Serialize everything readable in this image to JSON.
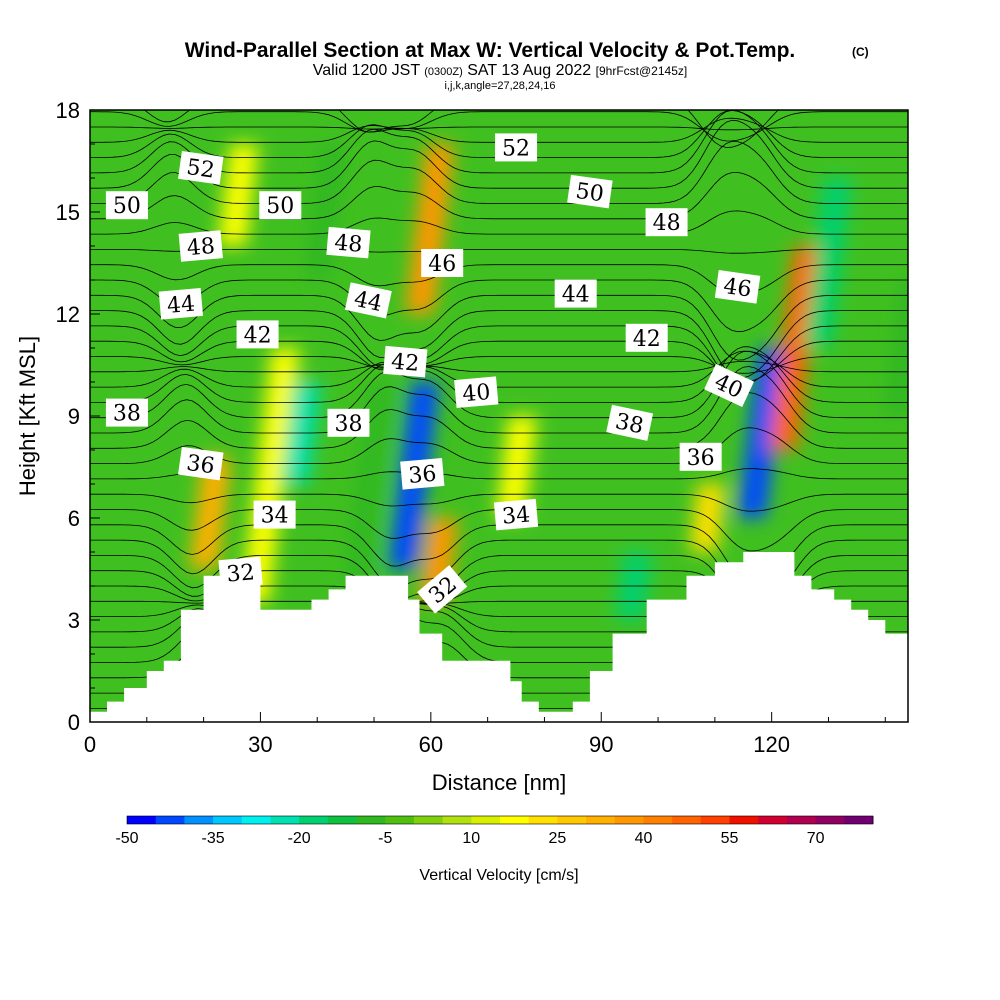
{
  "title": {
    "main": "Wind-Parallel Section at Max W: Vertical Velocity & Pot.Temp.",
    "copyright": "(C)",
    "valid_prefix": "Valid 1200 JST",
    "valid_z": "(0300Z)",
    "valid_date": "SAT 13 Aug 2022",
    "valid_fcst": "[9hrFcst@2145z]",
    "indices": "i,j,k,angle=27,28,24,16"
  },
  "chart_data": {
    "type": "heatmap",
    "xlabel": "Distance [nm]",
    "ylabel": "Height [Kft MSL]",
    "xlim": [
      0,
      144
    ],
    "ylim": [
      0,
      18
    ],
    "x_ticks": [
      0,
      30,
      60,
      90,
      120
    ],
    "y_ticks": [
      0,
      3,
      6,
      9,
      12,
      15,
      18
    ],
    "colorbar": {
      "label": "Vertical Velocity [cm/s]",
      "tick_values": [
        -50,
        -35,
        -20,
        -5,
        10,
        25,
        40,
        55,
        70
      ],
      "tick_labels": [
        "-50",
        "-35",
        "-20",
        "-5",
        "10",
        "25",
        "40",
        "55",
        "70"
      ],
      "levels": [
        -50,
        -45,
        -40,
        -35,
        -30,
        -25,
        -20,
        -15,
        -10,
        -5,
        0,
        5,
        10,
        15,
        20,
        25,
        30,
        35,
        40,
        45,
        50,
        55,
        60,
        65,
        70,
        75,
        80
      ],
      "colors": [
        "#0000ff",
        "#0048ff",
        "#0090ff",
        "#00c8ff",
        "#00f0f0",
        "#00e0b0",
        "#00d070",
        "#10c040",
        "#30b820",
        "#50c010",
        "#80d010",
        "#b0e010",
        "#d8f000",
        "#ffff00",
        "#ffe000",
        "#ffc800",
        "#ffb000",
        "#ff9800",
        "#ff8000",
        "#ff6400",
        "#ff4000",
        "#f01000",
        "#d00030",
        "#b00050",
        "#900060",
        "#700070"
      ]
    },
    "velocity_bands": [
      {
        "x": 20,
        "h0": 4.5,
        "h1": 7.8,
        "w": 30
      },
      {
        "x": 29,
        "h0": 3.5,
        "h1": 11,
        "w": 15
      },
      {
        "x": 36,
        "h0": 7,
        "h1": 10,
        "w": -22
      },
      {
        "x": 47,
        "h0": 4,
        "h1": 10,
        "w": -10
      },
      {
        "x": 55,
        "h0": 4.5,
        "h1": 10,
        "w": -45
      },
      {
        "x": 60.5,
        "h0": 3.5,
        "h1": 6,
        "w": 35
      },
      {
        "x": 58,
        "h0": 12,
        "h1": 17,
        "w": 35
      },
      {
        "x": 74,
        "h0": 6,
        "h1": 9,
        "w": 15
      },
      {
        "x": 95,
        "h0": 3,
        "h1": 5,
        "w": -20
      },
      {
        "x": 108,
        "h0": 5,
        "h1": 7,
        "w": 22
      },
      {
        "x": 116.5,
        "h0": 6,
        "h1": 11,
        "w": -45
      },
      {
        "x": 122,
        "h0": 8,
        "h1": 14,
        "w": 45
      },
      {
        "x": 128,
        "h0": 11,
        "h1": 16,
        "w": -20
      },
      {
        "x": 40,
        "h0": 13,
        "h1": 17,
        "w": -10
      },
      {
        "x": 25,
        "h0": 14,
        "h1": 17,
        "w": 15
      },
      {
        "x": 142,
        "h0": 9,
        "h1": 13,
        "w": -10
      }
    ],
    "terrain": [
      [
        0,
        0.3
      ],
      [
        3,
        0.3
      ],
      [
        3,
        0.6
      ],
      [
        6,
        0.6
      ],
      [
        6,
        1.0
      ],
      [
        10,
        1.0
      ],
      [
        10,
        1.5
      ],
      [
        13,
        1.5
      ],
      [
        13,
        1.8
      ],
      [
        16,
        1.8
      ],
      [
        16,
        3.3
      ],
      [
        20,
        3.3
      ],
      [
        20,
        4.3
      ],
      [
        30,
        4.3
      ],
      [
        30,
        3.3
      ],
      [
        39,
        3.3
      ],
      [
        39,
        3.6
      ],
      [
        42,
        3.6
      ],
      [
        42,
        3.9
      ],
      [
        45,
        3.9
      ],
      [
        45,
        4.3
      ],
      [
        56,
        4.3
      ],
      [
        56,
        3.6
      ],
      [
        58,
        3.6
      ],
      [
        58,
        2.6
      ],
      [
        62,
        2.6
      ],
      [
        62,
        1.8
      ],
      [
        74,
        1.8
      ],
      [
        74,
        1.2
      ],
      [
        76,
        1.2
      ],
      [
        76,
        0.6
      ],
      [
        79,
        0.6
      ],
      [
        79,
        0.3
      ],
      [
        85,
        0.3
      ],
      [
        85,
        0.6
      ],
      [
        88,
        0.6
      ],
      [
        88,
        1.5
      ],
      [
        92,
        1.5
      ],
      [
        92,
        2.6
      ],
      [
        98,
        2.6
      ],
      [
        98,
        3.6
      ],
      [
        105,
        3.6
      ],
      [
        105,
        4.3
      ],
      [
        110,
        4.3
      ],
      [
        110,
        4.7
      ],
      [
        115,
        4.7
      ],
      [
        115,
        5.0
      ],
      [
        124,
        5.0
      ],
      [
        124,
        4.3
      ],
      [
        127,
        4.3
      ],
      [
        127,
        3.9
      ],
      [
        131,
        3.9
      ],
      [
        131,
        3.6
      ],
      [
        134,
        3.6
      ],
      [
        134,
        3.3
      ],
      [
        137,
        3.3
      ],
      [
        137,
        3.0
      ],
      [
        140,
        3.0
      ],
      [
        140,
        2.6
      ],
      [
        144,
        2.6
      ]
    ],
    "theta_contour_labels": [
      {
        "text": "52",
        "x": 19.5,
        "y": 16.3,
        "rot": 8
      },
      {
        "text": "50",
        "x": 6.5,
        "y": 15.2,
        "rot": 0
      },
      {
        "text": "50",
        "x": 33.5,
        "y": 15.2,
        "rot": 0
      },
      {
        "text": "52",
        "x": 75,
        "y": 16.9,
        "rot": 0
      },
      {
        "text": "50",
        "x": 88,
        "y": 15.6,
        "rot": 8
      },
      {
        "text": "48",
        "x": 19.5,
        "y": 14.0,
        "rot": -5
      },
      {
        "text": "48",
        "x": 45.5,
        "y": 14.1,
        "rot": 5
      },
      {
        "text": "46",
        "x": 62,
        "y": 13.5,
        "rot": 0
      },
      {
        "text": "48",
        "x": 101.5,
        "y": 14.7,
        "rot": 0
      },
      {
        "text": "46",
        "x": 114,
        "y": 12.8,
        "rot": 8
      },
      {
        "text": "44",
        "x": 16,
        "y": 12.3,
        "rot": -5
      },
      {
        "text": "44",
        "x": 49,
        "y": 12.4,
        "rot": 12
      },
      {
        "text": "44",
        "x": 85.5,
        "y": 12.6,
        "rot": 0
      },
      {
        "text": "42",
        "x": 29.5,
        "y": 11.4,
        "rot": 0
      },
      {
        "text": "42",
        "x": 55.5,
        "y": 10.6,
        "rot": 5
      },
      {
        "text": "42",
        "x": 98,
        "y": 11.3,
        "rot": 0
      },
      {
        "text": "40",
        "x": 68,
        "y": 9.7,
        "rot": -5
      },
      {
        "text": "40",
        "x": 112.5,
        "y": 9.9,
        "rot": 25
      },
      {
        "text": "38",
        "x": 6.5,
        "y": 9.1,
        "rot": 0
      },
      {
        "text": "38",
        "x": 45.5,
        "y": 8.8,
        "rot": 0
      },
      {
        "text": "38",
        "x": 95,
        "y": 8.8,
        "rot": 12
      },
      {
        "text": "36",
        "x": 19.5,
        "y": 7.6,
        "rot": 8
      },
      {
        "text": "36",
        "x": 58.5,
        "y": 7.3,
        "rot": -5
      },
      {
        "text": "36",
        "x": 107.5,
        "y": 7.8,
        "rot": 0
      },
      {
        "text": "34",
        "x": 32.5,
        "y": 6.1,
        "rot": 0
      },
      {
        "text": "34",
        "x": 75,
        "y": 6.1,
        "rot": -5
      },
      {
        "text": "32",
        "x": 26.5,
        "y": 4.4,
        "rot": -5
      },
      {
        "text": "32",
        "x": 62,
        "y": 3.9,
        "rot": -40
      }
    ]
  }
}
